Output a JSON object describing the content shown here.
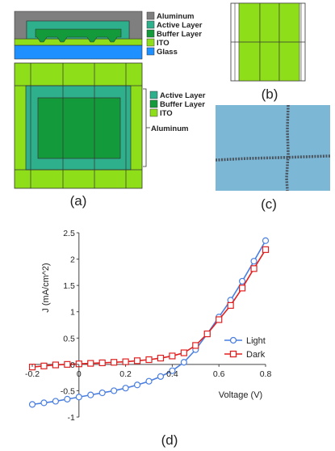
{
  "panels": {
    "a": {
      "caption": "(a)",
      "cross_section_legend": [
        "Aluminum",
        "Active Layer",
        "Buffer Layer",
        "ITO",
        "Glass"
      ],
      "plan_legend": [
        "Active Layer",
        "Buffer Layer",
        "ITO"
      ],
      "plan_aluminum_label": "Aluminum"
    },
    "b": {
      "caption": "(b)"
    },
    "c": {
      "caption": "(c)"
    },
    "d": {
      "caption": "(d)"
    }
  },
  "colors": {
    "aluminum": "#7f7f7f",
    "active_layer": "#2fb08c",
    "buffer_layer": "#139b3b",
    "ito": "#8fde1a",
    "glass": "#1e90ff",
    "photo_bg": "#7cb7d5",
    "light_series": "#4a7fe0",
    "dark_series": "#e02020"
  },
  "chart_data": {
    "type": "line",
    "title": "",
    "xlabel": "Voltage (V)",
    "ylabel": "J (mA/cm^2)",
    "xlim": [
      -0.2,
      0.8
    ],
    "ylim": [
      -1,
      2.5
    ],
    "x_ticks": [
      "-0.2",
      "0",
      "0.2",
      "0.4",
      "0.6",
      "0.8"
    ],
    "y_ticks": [
      "-1",
      "-0.5",
      "0",
      "0.5",
      "1",
      "1.5",
      "2",
      "2.5"
    ],
    "legend_position": "right",
    "series": [
      {
        "name": "Light",
        "marker": "circle",
        "x": [
          -0.2,
          -0.15,
          -0.1,
          -0.05,
          0.0,
          0.05,
          0.1,
          0.15,
          0.2,
          0.25,
          0.3,
          0.35,
          0.4,
          0.45,
          0.5,
          0.55,
          0.6,
          0.65,
          0.7,
          0.75,
          0.8
        ],
        "y": [
          -0.76,
          -0.73,
          -0.7,
          -0.66,
          -0.62,
          -0.58,
          -0.54,
          -0.5,
          -0.45,
          -0.39,
          -0.32,
          -0.23,
          -0.12,
          0.04,
          0.28,
          0.58,
          0.9,
          1.22,
          1.58,
          1.96,
          2.35
        ]
      },
      {
        "name": "Dark",
        "marker": "square",
        "x": [
          -0.2,
          -0.15,
          -0.1,
          -0.05,
          0.0,
          0.05,
          0.1,
          0.15,
          0.2,
          0.25,
          0.3,
          0.35,
          0.4,
          0.45,
          0.5,
          0.55,
          0.6,
          0.65,
          0.7,
          0.75,
          0.8
        ],
        "y": [
          -0.05,
          -0.03,
          -0.01,
          0.0,
          0.01,
          0.02,
          0.03,
          0.04,
          0.05,
          0.07,
          0.09,
          0.12,
          0.16,
          0.22,
          0.36,
          0.58,
          0.85,
          1.12,
          1.45,
          1.82,
          2.18
        ]
      }
    ]
  }
}
